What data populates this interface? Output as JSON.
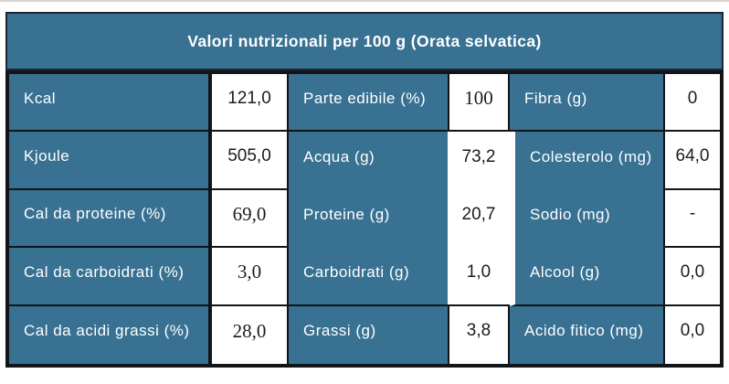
{
  "header": {
    "title": "Valori nutrizionali per 100 g (Orata selvatica)"
  },
  "colors": {
    "teal": "#387192",
    "grid_border": "#121417",
    "header_border": "#1c2733",
    "label_text": "#ffffff",
    "value_text": "#1c1c1c",
    "top_rule": "#d6d6d6"
  },
  "table": {
    "rows": [
      {
        "c0": "Kcal",
        "c1": "121,0",
        "c2": "Parte edibile (%)",
        "c3": "100",
        "c4": "Fibra (g)",
        "c5": "0"
      },
      {
        "c0": "Kjoule",
        "c1": "505,0",
        "c2": "Acqua (g)",
        "c3": "73,2",
        "c4": "Colesterolo (mg)",
        "c5": "64,0"
      },
      {
        "c0": "Cal da proteine (%)",
        "c1": "69,0",
        "c2": "Proteine (g)",
        "c3": "20,7",
        "c4": "Sodio (mg)",
        "c5": "-"
      },
      {
        "c0": "Cal da carboidrati (%)",
        "c1": "3,0",
        "c2": "Carboidrati (g)",
        "c3": "1,0",
        "c4": "Alcool (g)",
        "c5": "0,0"
      },
      {
        "c0": "Cal da acidi grassi (%)",
        "c1": "28,0",
        "c2": "Grassi (g)",
        "c3": "3,8",
        "c4": "Acido fitico (mg)",
        "c5": "0,0"
      }
    ]
  },
  "chart_data": {
    "type": "table",
    "title": "Valori nutrizionali per 100 g (Orata selvatica)",
    "entries": [
      {
        "name": "Kcal",
        "value": "121,0"
      },
      {
        "name": "Kjoule",
        "value": "505,0"
      },
      {
        "name": "Cal da proteine (%)",
        "value": "69,0"
      },
      {
        "name": "Cal da carboidrati (%)",
        "value": "3,0"
      },
      {
        "name": "Cal da acidi grassi (%)",
        "value": "28,0"
      },
      {
        "name": "Parte edibile (%)",
        "value": "100"
      },
      {
        "name": "Acqua (g)",
        "value": "73,2"
      },
      {
        "name": "Proteine (g)",
        "value": "20,7"
      },
      {
        "name": "Carboidrati (g)",
        "value": "1,0"
      },
      {
        "name": "Grassi (g)",
        "value": "3,8"
      },
      {
        "name": "Fibra (g)",
        "value": "0"
      },
      {
        "name": "Colesterolo (mg)",
        "value": "64,0"
      },
      {
        "name": "Sodio (mg)",
        "value": "-"
      },
      {
        "name": "Alcool (g)",
        "value": "0,0"
      },
      {
        "name": "Acido fitico (mg)",
        "value": "0,0"
      }
    ]
  }
}
